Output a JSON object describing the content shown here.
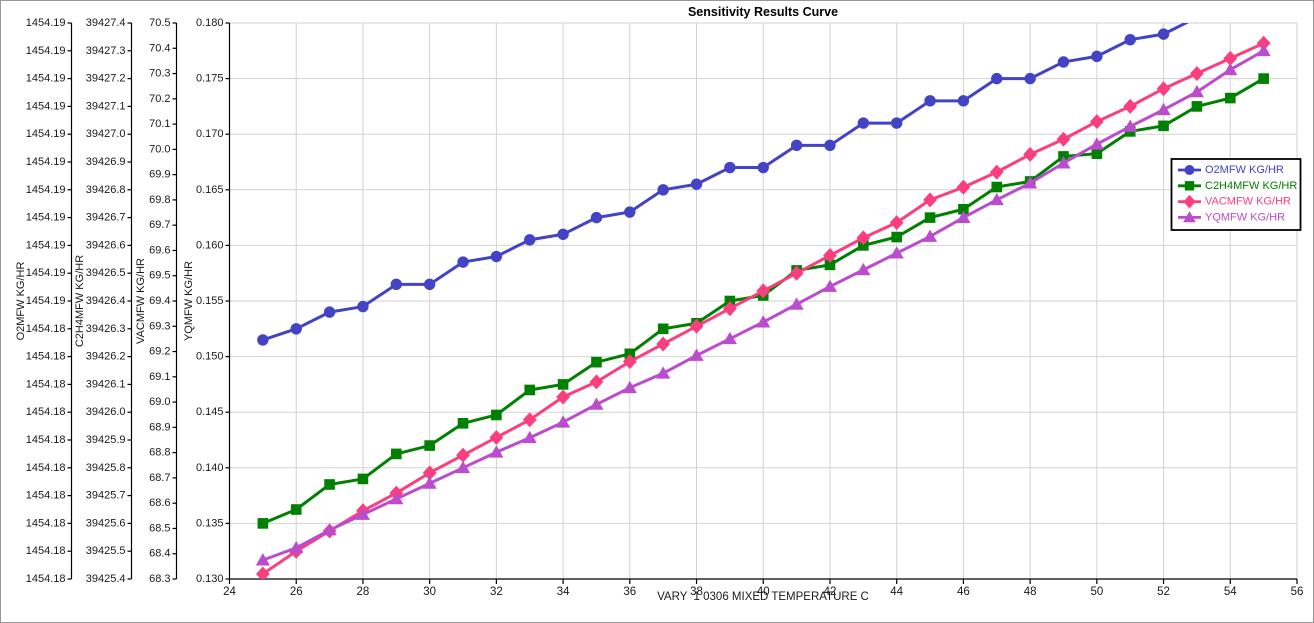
{
  "figure": {
    "title": "Sensitivity Results Curve"
  },
  "x_axis": {
    "title": "VARY  1 0306 MIXED TEMPERATURE C",
    "min": 24,
    "max": 56,
    "tick_labels": [
      "24",
      "26",
      "28",
      "30",
      "32",
      "34",
      "36",
      "38",
      "40",
      "42",
      "44",
      "46",
      "48",
      "50",
      "52",
      "54",
      "56"
    ]
  },
  "y_axes": [
    {
      "id": "o2mfw",
      "title": "O2MFW KG/HR",
      "min": 1454.18,
      "max": 1454.19,
      "tick_labels": [
        "1454.19",
        "1454.19",
        "1454.19",
        "1454.19",
        "1454.19",
        "1454.19",
        "1454.19",
        "1454.19",
        "1454.19",
        "1454.19",
        "1454.19",
        "1454.18",
        "1454.18",
        "1454.18",
        "1454.18",
        "1454.18",
        "1454.18",
        "1454.18",
        "1454.18",
        "1454.18",
        "1454.18"
      ]
    },
    {
      "id": "c2h4mfw",
      "title": "C2H4MFW KG/HR",
      "min": 39425.4,
      "max": 39427.4,
      "tick_labels": [
        "39427.4",
        "39427.3",
        "39427.2",
        "39427.1",
        "39427.0",
        "39426.9",
        "39426.8",
        "39426.7",
        "39426.6",
        "39426.5",
        "39426.4",
        "39426.3",
        "39426.2",
        "39426.1",
        "39426.0",
        "39425.9",
        "39425.8",
        "39425.7",
        "39425.6",
        "39425.5",
        "39425.4"
      ]
    },
    {
      "id": "vacmfw",
      "title": "VACMFW KG/HR",
      "min": 68.3,
      "max": 70.5,
      "tick_labels": [
        "70.5",
        "70.4",
        "70.3",
        "70.2",
        "70.1",
        "70.0",
        "69.9",
        "69.8",
        "69.7",
        "69.6",
        "69.5",
        "69.4",
        "69.3",
        "69.2",
        "69.1",
        "69.0",
        "68.9",
        "68.8",
        "68.7",
        "68.6",
        "68.5",
        "68.4",
        "68.3"
      ]
    },
    {
      "id": "yqmfw",
      "title": "YQMFW KG/HR",
      "min": 0.13,
      "max": 0.18,
      "tick_labels": [
        "0.180",
        "0.175",
        "0.170",
        "0.165",
        "0.160",
        "0.155",
        "0.150",
        "0.145",
        "0.140",
        "0.135",
        "0.130"
      ]
    }
  ],
  "chart_data": {
    "type": "line",
    "title": "Sensitivity Results Curve",
    "xlabel": "VARY  1 0306 MIXED TEMPERATURE C",
    "xlim": [
      24,
      56
    ],
    "grid": true,
    "legend_position": "right-middle",
    "x": [
      25,
      26,
      27,
      28,
      29,
      30,
      31,
      32,
      33,
      34,
      35,
      36,
      37,
      38,
      39,
      40,
      41,
      42,
      43,
      44,
      45,
      46,
      47,
      48,
      49,
      50,
      51,
      52,
      53,
      54,
      55
    ],
    "series": [
      {
        "name": "O2MFW KG/HR",
        "axis": "o2mfw",
        "color": "#4343C6",
        "marker": "circle",
        "values": [
          1454.1843,
          1454.1845,
          1454.1848,
          1454.1849,
          1454.1853,
          1454.1853,
          1454.1857,
          1454.1858,
          1454.1861,
          1454.1862,
          1454.1865,
          1454.1866,
          1454.187,
          1454.1871,
          1454.1874,
          1454.1874,
          1454.1878,
          1454.1878,
          1454.1882,
          1454.1882,
          1454.1886,
          1454.1886,
          1454.189,
          1454.189,
          1454.1893,
          1454.1894,
          1454.1897,
          1454.1898,
          1454.1901,
          null,
          null
        ]
      },
      {
        "name": "C2H4MFW KG/HR",
        "axis": "c2h4mfw",
        "color": "#008000",
        "marker": "square",
        "values": [
          39425.6,
          39425.65,
          39425.74,
          39425.76,
          39425.85,
          39425.88,
          39425.96,
          39425.99,
          39426.08,
          39426.1,
          39426.18,
          39426.21,
          39426.3,
          39426.32,
          39426.4,
          39426.42,
          39426.51,
          39426.53,
          39426.6,
          39426.63,
          39426.7,
          39426.73,
          39426.81,
          39426.83,
          39426.92,
          39426.93,
          39427.01,
          39427.03,
          39427.1,
          39427.13,
          39427.2
        ]
      },
      {
        "name": "VACMFW KG/HR",
        "axis": "vacmfw",
        "color": "#FB3E7E",
        "marker": "diamond",
        "values": [
          68.32,
          68.41,
          68.49,
          68.57,
          68.64,
          68.72,
          68.79,
          68.86,
          68.93,
          69.02,
          69.08,
          69.16,
          69.23,
          69.3,
          69.37,
          69.44,
          69.51,
          69.58,
          69.65,
          69.71,
          69.8,
          69.85,
          69.91,
          69.98,
          70.04,
          70.11,
          70.17,
          70.24,
          70.3,
          70.36,
          70.42
        ]
      },
      {
        "name": "YQMFW KG/HR",
        "axis": "yqmfw",
        "color": "#BC4CCE",
        "marker": "triangle",
        "values": [
          0.1317,
          0.1328,
          0.1344,
          0.1358,
          0.1372,
          0.1386,
          0.14,
          0.1414,
          0.1427,
          0.1441,
          0.1457,
          0.1472,
          0.1485,
          0.1501,
          0.1516,
          0.1531,
          0.1547,
          0.1563,
          0.1578,
          0.1593,
          0.1608,
          0.1625,
          0.1641,
          0.1656,
          0.1674,
          0.1691,
          0.1707,
          0.1722,
          0.1738,
          0.1758,
          0.1775
        ]
      }
    ]
  },
  "colors": {
    "grid": "#D2D2D2",
    "axis": "#000000",
    "tick_text": "#1A1A1A",
    "title_text": "#000000",
    "legend_border": "#000000",
    "legend_background": "#FFFFFF",
    "figure_border": "#979797"
  }
}
